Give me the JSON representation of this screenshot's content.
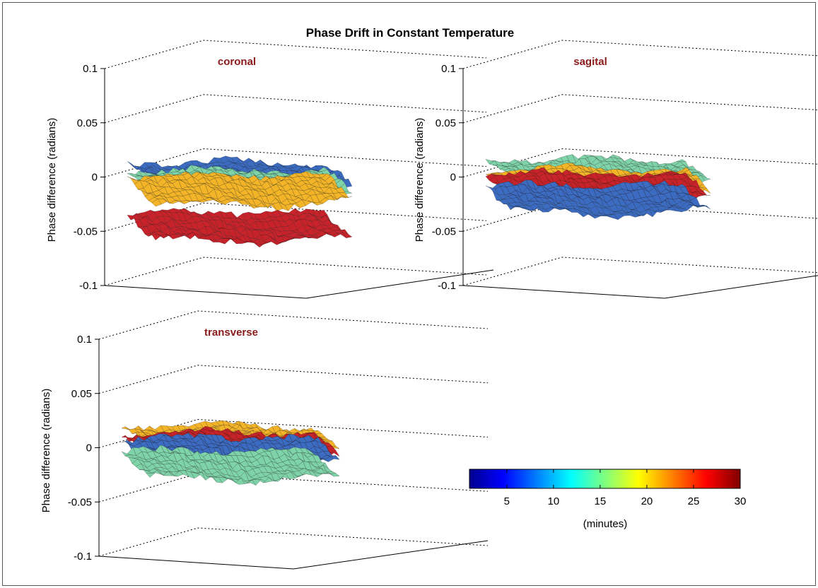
{
  "figure_title": "Phase Drift in Constant Temperature",
  "chart_data": [
    {
      "type": "surface",
      "title": "coronal",
      "ylabel": "Phase difference (radians)",
      "zlim": [
        -0.1,
        0.1
      ],
      "ticks": [
        "-0.1",
        "-0.05",
        "0",
        "0.05",
        "0.1"
      ],
      "series": [
        {
          "minutes": 5,
          "color": "#3b6cc2",
          "mean": 0.005
        },
        {
          "minutes": 14,
          "color": "#7fd3a8",
          "mean": -0.003
        },
        {
          "minutes": 21,
          "color": "#f4b428",
          "mean": -0.01
        },
        {
          "minutes": 27,
          "color": "#c8232a",
          "mean": -0.045
        }
      ]
    },
    {
      "type": "surface",
      "title": "sagital",
      "ylabel": "Phase difference (radians)",
      "zlim": [
        -0.1,
        0.1
      ],
      "ticks": [
        "-0.1",
        "-0.05",
        "0",
        "0.05",
        "0.1"
      ],
      "series": [
        {
          "minutes": 14,
          "color": "#7fd3a8",
          "mean": 0.008
        },
        {
          "minutes": 21,
          "color": "#f4b428",
          "mean": -0.002
        },
        {
          "minutes": 27,
          "color": "#c8232a",
          "mean": -0.008
        },
        {
          "minutes": 5,
          "color": "#3b6cc2",
          "mean": -0.02
        }
      ]
    },
    {
      "type": "surface",
      "title": "transverse",
      "ylabel": "Phase difference (radians)",
      "zlim": [
        -0.1,
        0.1
      ],
      "ticks": [
        "-0.1",
        "-0.05",
        "0",
        "0.05",
        "0.1"
      ],
      "series": [
        {
          "minutes": 21,
          "color": "#f4b428",
          "mean": 0.012
        },
        {
          "minutes": 27,
          "color": "#c8232a",
          "mean": 0.005
        },
        {
          "minutes": 5,
          "color": "#3b6cc2",
          "mean": -0.002
        },
        {
          "minutes": 14,
          "color": "#7fd3a8",
          "mean": -0.015
        }
      ]
    }
  ],
  "colorbar": {
    "label": "(minutes)",
    "min": 1,
    "max": 30,
    "ticks": [
      "5",
      "10",
      "15",
      "20",
      "25",
      "30"
    ],
    "tick_values": [
      5,
      10,
      15,
      20,
      25,
      30
    ],
    "colormap": "jet"
  }
}
